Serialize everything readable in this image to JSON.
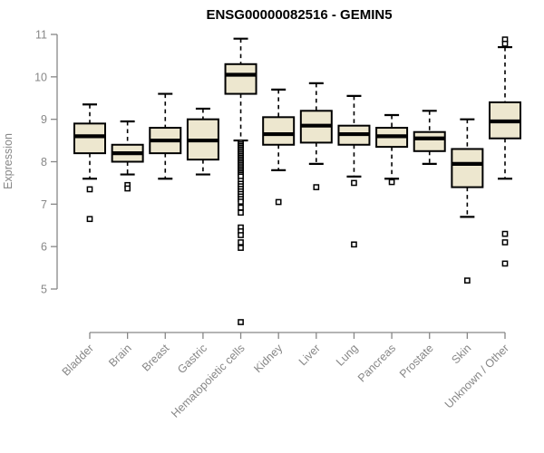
{
  "window": {
    "background": "#ffffff"
  },
  "chart_data": {
    "type": "boxplot",
    "title": "ENSG00000082516 - GEMIN5",
    "ylabel": "Expression",
    "xlabel": "",
    "ylim": [
      5,
      11
    ],
    "yticks": [
      5,
      6,
      7,
      8,
      9,
      10,
      11
    ],
    "grid": false,
    "legend_position": "none",
    "categories": [
      "Bladder",
      "Brain",
      "Breast",
      "Gastric",
      "Hematopoietic cells",
      "Kidney",
      "Liver",
      "Lung",
      "Pancreas",
      "Prostate",
      "Skin",
      "Unknown / Other"
    ],
    "series": [
      {
        "name": "Bladder",
        "low": 7.6,
        "q1": 8.2,
        "median": 8.6,
        "q3": 8.9,
        "high": 9.35,
        "outliers": [
          7.35,
          6.65
        ]
      },
      {
        "name": "Brain",
        "low": 7.7,
        "q1": 8.0,
        "median": 8.2,
        "q3": 8.4,
        "high": 8.95,
        "outliers": [
          7.45,
          7.37
        ]
      },
      {
        "name": "Breast",
        "low": 7.6,
        "q1": 8.2,
        "median": 8.5,
        "q3": 8.8,
        "high": 9.6,
        "outliers": []
      },
      {
        "name": "Gastric",
        "low": 7.7,
        "q1": 8.05,
        "median": 8.5,
        "q3": 9.0,
        "high": 9.25,
        "outliers": []
      },
      {
        "name": "Hematopoietic cells",
        "low": 8.5,
        "q1": 9.6,
        "median": 10.05,
        "q3": 10.3,
        "high": 10.9,
        "outliers": [
          8.45,
          8.41,
          8.37,
          8.33,
          8.29,
          8.25,
          8.21,
          8.17,
          8.13,
          8.09,
          8.05,
          8.01,
          7.97,
          7.93,
          7.89,
          7.85,
          7.81,
          7.77,
          7.73,
          7.69,
          7.65,
          7.55,
          7.48,
          7.42,
          7.36,
          7.3,
          7.24,
          7.18,
          7.12,
          7.06,
          6.92,
          6.8,
          6.45,
          6.36,
          6.27,
          6.1,
          5.97,
          4.22
        ]
      },
      {
        "name": "Kidney",
        "low": 7.8,
        "q1": 8.4,
        "median": 8.65,
        "q3": 9.05,
        "high": 9.7,
        "outliers": [
          7.05
        ]
      },
      {
        "name": "Liver",
        "low": 7.95,
        "q1": 8.45,
        "median": 8.85,
        "q3": 9.2,
        "high": 9.85,
        "outliers": [
          7.4
        ]
      },
      {
        "name": "Lung",
        "low": 7.65,
        "q1": 8.4,
        "median": 8.65,
        "q3": 8.85,
        "high": 9.55,
        "outliers": [
          7.5,
          6.05
        ]
      },
      {
        "name": "Pancreas",
        "low": 7.6,
        "q1": 8.35,
        "median": 8.6,
        "q3": 8.8,
        "high": 9.1,
        "outliers": [
          7.52
        ]
      },
      {
        "name": "Prostate",
        "low": 7.95,
        "q1": 8.25,
        "median": 8.55,
        "q3": 8.7,
        "high": 9.2,
        "outliers": []
      },
      {
        "name": "Skin",
        "low": 6.7,
        "q1": 7.4,
        "median": 7.95,
        "q3": 8.3,
        "high": 9.0,
        "outliers": [
          5.2
        ]
      },
      {
        "name": "Unknown / Other",
        "low": 7.6,
        "q1": 8.55,
        "median": 8.95,
        "q3": 9.4,
        "high": 10.7,
        "outliers": [
          10.88,
          10.78,
          6.3,
          6.1,
          5.6
        ]
      }
    ],
    "colors": {
      "box_fill": "#ede7cf",
      "box_border": "#000000",
      "median": "#000000",
      "whisker": "#000000",
      "outlier_fill": "#ffffff",
      "outlier_border": "#000000",
      "axis": "#878787",
      "tick_text": "#878787",
      "title_text": "#000000",
      "background": "#ffffff"
    }
  }
}
